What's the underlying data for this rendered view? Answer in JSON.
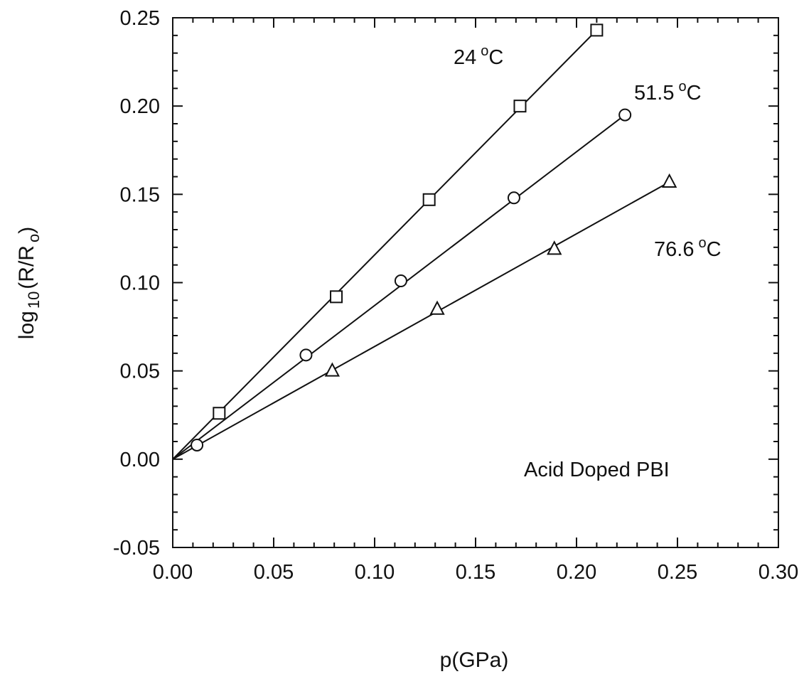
{
  "chart_data": {
    "type": "scatter",
    "title": "",
    "xlabel": "p(GPa)",
    "ylabel": {
      "prefix": "log",
      "subscript": "10",
      "body": "(R/R",
      "subscript2": "o",
      "suffix": ")"
    },
    "xlim": [
      0.0,
      0.3
    ],
    "ylim": [
      -0.05,
      0.25
    ],
    "x_ticks": [
      "0.00",
      "0.05",
      "0.10",
      "0.15",
      "0.20",
      "0.25",
      "0.30"
    ],
    "y_ticks": [
      "-0.05",
      "0.00",
      "0.05",
      "0.10",
      "0.15",
      "0.20",
      "0.25"
    ],
    "grid": false,
    "series": [
      {
        "name": "24 °C",
        "label_parts": {
          "value": "24",
          "unit": "C"
        },
        "marker": "square",
        "fit_line": [
          [
            0.0,
            0.0
          ],
          [
            0.21,
            0.243
          ]
        ],
        "points": [
          [
            0.023,
            0.026
          ],
          [
            0.081,
            0.092
          ],
          [
            0.127,
            0.147
          ],
          [
            0.172,
            0.2
          ],
          [
            0.21,
            0.243
          ]
        ]
      },
      {
        "name": "51.5 °C",
        "label_parts": {
          "value": "51.5",
          "unit": "C"
        },
        "marker": "circle",
        "fit_line": [
          [
            0.0,
            0.0
          ],
          [
            0.224,
            0.195
          ]
        ],
        "points": [
          [
            0.012,
            0.008
          ],
          [
            0.066,
            0.059
          ],
          [
            0.113,
            0.101
          ],
          [
            0.169,
            0.148
          ],
          [
            0.224,
            0.195
          ]
        ]
      },
      {
        "name": "76.6 °C",
        "label_parts": {
          "value": "76.6",
          "unit": "C"
        },
        "marker": "triangle",
        "fit_line": [
          [
            0.0,
            0.0
          ],
          [
            0.246,
            0.157
          ]
        ],
        "points": [
          [
            0.079,
            0.05
          ],
          [
            0.131,
            0.085
          ],
          [
            0.189,
            0.119
          ],
          [
            0.246,
            0.157
          ]
        ]
      }
    ],
    "annotations": [
      {
        "text": "Acid Doped PBI"
      }
    ]
  }
}
